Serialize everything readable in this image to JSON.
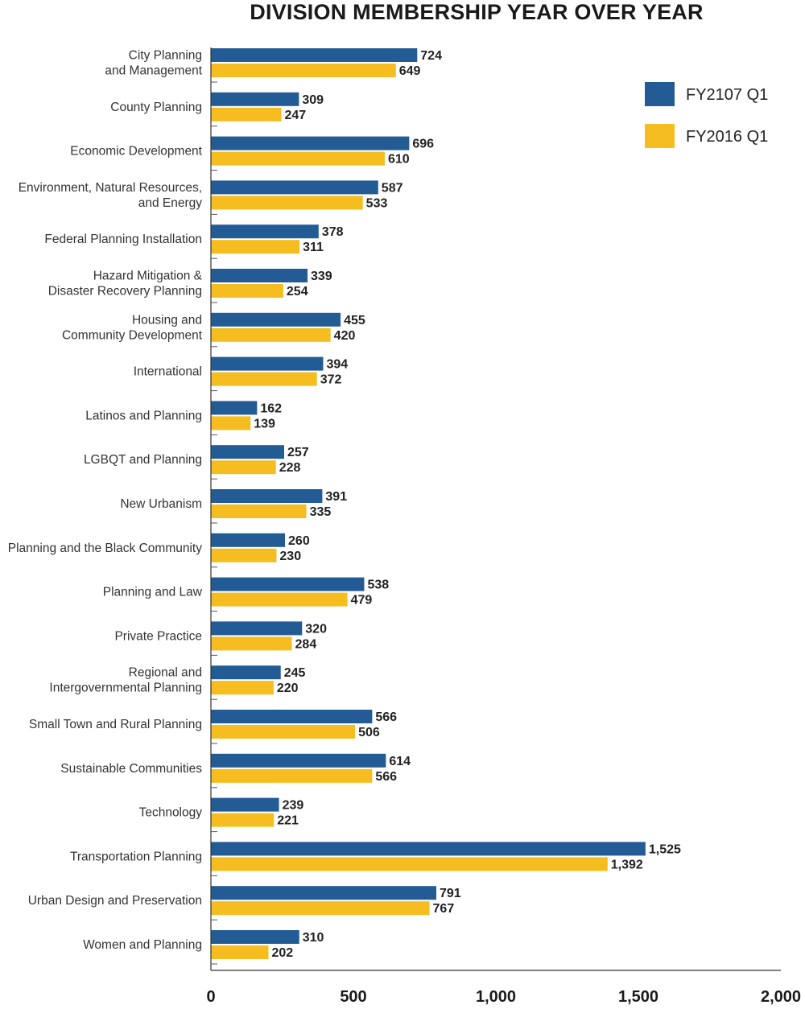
{
  "chart_data": {
    "type": "bar",
    "orientation": "horizontal",
    "title": "DIVISION MEMBERSHIP YEAR OVER YEAR",
    "xlabel": "",
    "ylabel": "",
    "xlim": [
      0,
      2000
    ],
    "x_ticks": [
      0,
      500,
      1000,
      1500,
      2000
    ],
    "x_tick_labels": [
      "0",
      "500",
      "1,000",
      "1,500",
      "2,000"
    ],
    "grid": false,
    "legend_position": "top-right",
    "categories": [
      [
        "City Planning",
        "and Management"
      ],
      [
        "County Planning"
      ],
      [
        "Economic Development"
      ],
      [
        "Environment, Natural Resources,",
        "and Energy"
      ],
      [
        "Federal Planning Installation"
      ],
      [
        "Hazard Mitigation &",
        "Disaster Recovery Planning"
      ],
      [
        "Housing and",
        "Community Development"
      ],
      [
        "International"
      ],
      [
        "Latinos and Planning"
      ],
      [
        "LGBQT and Planning"
      ],
      [
        "New Urbanism"
      ],
      [
        "Planning and the Black Community"
      ],
      [
        "Planning and Law"
      ],
      [
        "Private Practice"
      ],
      [
        "Regional and",
        "Intergovernmental Planning"
      ],
      [
        "Small Town and Rural Planning"
      ],
      [
        "Sustainable Communities"
      ],
      [
        "Technology"
      ],
      [
        "Transportation Planning"
      ],
      [
        "Urban Design and Preservation"
      ],
      [
        "Women and Planning"
      ]
    ],
    "series": [
      {
        "name": "FY2107 Q1",
        "color": "#235b95",
        "values": [
          724,
          309,
          696,
          587,
          378,
          339,
          455,
          394,
          162,
          257,
          391,
          260,
          538,
          320,
          245,
          566,
          614,
          239,
          1525,
          791,
          310
        ],
        "value_labels": [
          "724",
          "309",
          "696",
          "587",
          "378",
          "339",
          "455",
          "394",
          "162",
          "257",
          "391",
          "260",
          "538",
          "320",
          "245",
          "566",
          "614",
          "239",
          "1,525",
          "791",
          "310"
        ]
      },
      {
        "name": "FY2016 Q1",
        "color": "#f5bd1f",
        "values": [
          649,
          247,
          610,
          533,
          311,
          254,
          420,
          372,
          139,
          228,
          335,
          230,
          479,
          284,
          220,
          506,
          566,
          221,
          1392,
          767,
          202
        ],
        "value_labels": [
          "649",
          "247",
          "610",
          "533",
          "311",
          "254",
          "420",
          "372",
          "139",
          "228",
          "335",
          "230",
          "479",
          "284",
          "220",
          "506",
          "566",
          "221",
          "1,392",
          "767",
          "202"
        ]
      }
    ]
  }
}
